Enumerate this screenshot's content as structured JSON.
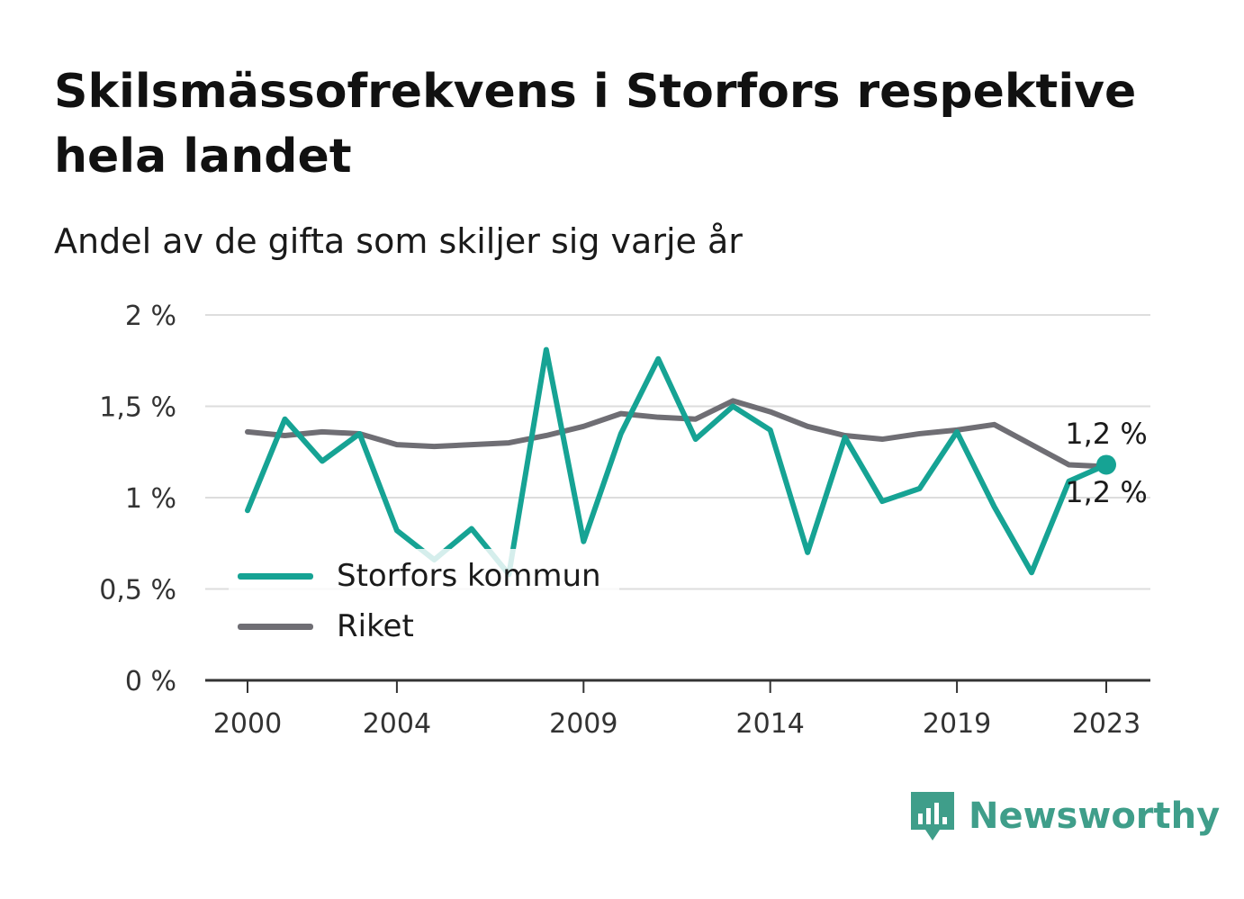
{
  "title": "Skilsmässofrekvens i Storfors respektive hela landet",
  "subtitle": "Andel av de gifta som skiljer sig varje år",
  "brand": {
    "name": "Newsworthy",
    "icon": "newsworthy-logo-icon",
    "color": "#3f9e8a"
  },
  "colors": {
    "storfors": "#16a394",
    "riket": "#6f6e74",
    "grid": "#dddddd",
    "axis": "#333333"
  },
  "chart_data": {
    "type": "line",
    "title": "Skilsmässofrekvens i Storfors respektive hela landet",
    "subtitle": "Andel av de gifta som skiljer sig varje år",
    "xlabel": "",
    "ylabel": "",
    "x": [
      2000,
      2001,
      2002,
      2003,
      2004,
      2005,
      2006,
      2007,
      2008,
      2009,
      2010,
      2011,
      2012,
      2013,
      2014,
      2015,
      2016,
      2017,
      2018,
      2019,
      2020,
      2021,
      2022,
      2023
    ],
    "xlim": [
      2000,
      2023
    ],
    "ylim": [
      0,
      2
    ],
    "x_ticks": [
      {
        "value": 2000,
        "label": "2000"
      },
      {
        "value": 2004,
        "label": "2004"
      },
      {
        "value": 2009,
        "label": "2009"
      },
      {
        "value": 2014,
        "label": "2014"
      },
      {
        "value": 2019,
        "label": "2019"
      },
      {
        "value": 2023,
        "label": "2023"
      }
    ],
    "y_ticks": [
      {
        "value": 0,
        "label": "0 %"
      },
      {
        "value": 0.5,
        "label": "0,5 %"
      },
      {
        "value": 1,
        "label": "1 %"
      },
      {
        "value": 1.5,
        "label": "1,5 %"
      },
      {
        "value": 2,
        "label": "2 %"
      }
    ],
    "grid": true,
    "legend_position": "bottom-left",
    "series": [
      {
        "name": "Storfors kommun",
        "color": "#16a394",
        "values": [
          0.93,
          1.43,
          1.2,
          1.35,
          0.82,
          0.66,
          0.83,
          0.58,
          1.81,
          0.76,
          1.35,
          1.76,
          1.32,
          1.5,
          1.37,
          0.7,
          1.33,
          0.98,
          1.05,
          1.36,
          0.95,
          0.59,
          1.09,
          1.18
        ],
        "end_label": "1,2 %"
      },
      {
        "name": "Riket",
        "color": "#6f6e74",
        "values": [
          1.36,
          1.34,
          1.36,
          1.35,
          1.29,
          1.28,
          1.29,
          1.3,
          1.34,
          1.39,
          1.46,
          1.44,
          1.43,
          1.53,
          1.47,
          1.39,
          1.34,
          1.32,
          1.35,
          1.37,
          1.4,
          1.29,
          1.18,
          1.17
        ],
        "end_label": "1,2 %"
      }
    ]
  }
}
